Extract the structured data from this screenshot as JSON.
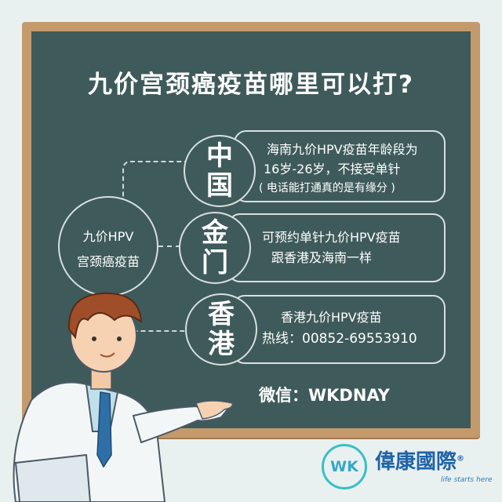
{
  "title": "九价宫颈癌疫苗哪里可以打?",
  "hub": {
    "line1": "九价HPV",
    "line2": "宫颈癌疫苗"
  },
  "rows": [
    {
      "city": "中国",
      "lines": [
        "海南九价HPV疫苗年龄段为",
        "16岁-26岁，不接受单针",
        "( 电话能打通真的是有缘分 )"
      ]
    },
    {
      "city": "金门",
      "lines": [
        "可预约单针九价HPV疫苗",
        "跟香港及海南一样"
      ]
    },
    {
      "city": "香港",
      "lines": [
        "香港九价HPV疫苗",
        "热线：00852-69553910"
      ]
    }
  ],
  "wechat": "微信：WKDNAY",
  "logo": {
    "mark": "WK",
    "name": "偉康國際",
    "tagline": "life starts here",
    "registered": "®"
  }
}
